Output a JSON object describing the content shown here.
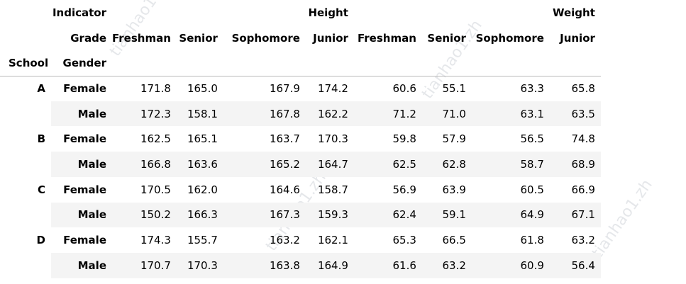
{
  "header": {
    "indicator_label": "Indicator",
    "grade_label": "Grade",
    "gender_label": "Gender",
    "school_label": "School",
    "groups": [
      "Height",
      "Weight"
    ],
    "grades": [
      "Freshman",
      "Senior",
      "Sophomore",
      "Junior",
      "Freshman",
      "Senior",
      "Sophomore",
      "Junior"
    ]
  },
  "rows": [
    {
      "school": "A",
      "gender": "Female",
      "values": [
        "171.8",
        "165.0",
        "167.9",
        "174.2",
        "60.6",
        "55.1",
        "63.3",
        "65.8"
      ]
    },
    {
      "school": "",
      "gender": "Male",
      "values": [
        "172.3",
        "158.1",
        "167.8",
        "162.2",
        "71.2",
        "71.0",
        "63.1",
        "63.5"
      ]
    },
    {
      "school": "B",
      "gender": "Female",
      "values": [
        "162.5",
        "165.1",
        "163.7",
        "170.3",
        "59.8",
        "57.9",
        "56.5",
        "74.8"
      ]
    },
    {
      "school": "",
      "gender": "Male",
      "values": [
        "166.8",
        "163.6",
        "165.2",
        "164.7",
        "62.5",
        "62.8",
        "58.7",
        "68.9"
      ]
    },
    {
      "school": "C",
      "gender": "Female",
      "values": [
        "170.5",
        "162.0",
        "164.6",
        "158.7",
        "56.9",
        "63.9",
        "60.5",
        "66.9"
      ]
    },
    {
      "school": "",
      "gender": "Male",
      "values": [
        "150.2",
        "166.3",
        "167.3",
        "159.3",
        "62.4",
        "59.1",
        "64.9",
        "67.1"
      ]
    },
    {
      "school": "D",
      "gender": "Female",
      "values": [
        "174.3",
        "155.7",
        "163.2",
        "162.1",
        "65.3",
        "66.5",
        "61.8",
        "63.2"
      ]
    },
    {
      "school": "",
      "gender": "Male",
      "values": [
        "170.7",
        "170.3",
        "163.8",
        "164.9",
        "61.6",
        "63.2",
        "60.9",
        "56.4"
      ]
    }
  ],
  "watermark": {
    "text": "tianhao1.zh",
    "color": "#a0aab4"
  }
}
